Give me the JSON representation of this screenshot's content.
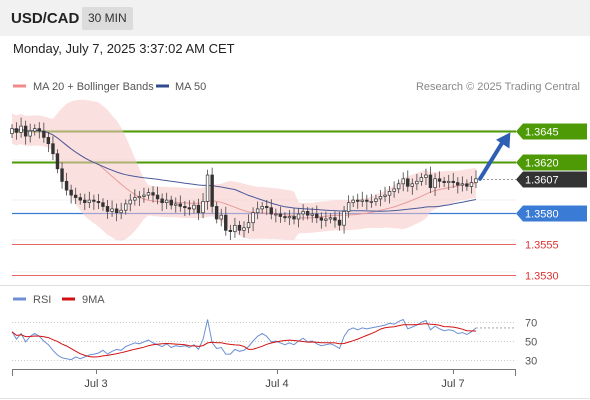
{
  "header": {
    "symbol": "USD/CAD",
    "timeframe": "30 MIN"
  },
  "date_text": "Monday, July 7, 2025 3:37:02 AM CET",
  "legend": {
    "ma20": "MA 20 + Bollinger Bands",
    "ma50": "MA 50",
    "rsi": "RSI",
    "rsi_ma": "9MA",
    "credit": "Research © 2025 Trading Central"
  },
  "colors": {
    "green": "#4e9a06",
    "blue": "#3a7bd5",
    "red": "#dd3333",
    "dark": "#333333",
    "band": "#f7c6c6",
    "ma20": "#e89b9b",
    "ma50": "#4a5a9a",
    "rsi": "#6c8fd6",
    "rsi_ma": "#d11111"
  },
  "chart_data": [
    {
      "type": "candlestick",
      "x_ticks": [
        "Jul 3",
        "Jul 4",
        "Jul 7"
      ],
      "ylim": [
        1.3524,
        1.3665
      ],
      "levels": [
        {
          "value": 1.3645,
          "label": "1.3645",
          "kind": "resistance"
        },
        {
          "value": 1.362,
          "label": "1.3620",
          "kind": "resistance"
        },
        {
          "value": 1.3607,
          "label": "1.3607",
          "kind": "last"
        },
        {
          "value": 1.358,
          "label": "1.3580",
          "kind": "pivot"
        },
        {
          "value": 1.3555,
          "label": "1.3555",
          "kind": "support"
        },
        {
          "value": 1.353,
          "label": "1.3530",
          "kind": "support"
        }
      ],
      "projection": {
        "from": 1.3607,
        "to": 1.3645
      },
      "close": [
        1.3647,
        1.3644,
        1.3649,
        1.3641,
        1.3645,
        1.3647,
        1.3645,
        1.364,
        1.3635,
        1.3627,
        1.3615,
        1.3605,
        1.3598,
        1.3594,
        1.3592,
        1.359,
        1.3588,
        1.359,
        1.3589,
        1.3588,
        1.3585,
        1.3581,
        1.3583,
        1.358,
        1.3582,
        1.3587,
        1.359,
        1.3592,
        1.3593,
        1.3594,
        1.3596,
        1.3594,
        1.3591,
        1.3588,
        1.359,
        1.3586,
        1.3587,
        1.3585,
        1.3584,
        1.3583,
        1.3586,
        1.358,
        1.3589,
        1.361,
        1.3585,
        1.3575,
        1.3578,
        1.3566,
        1.3565,
        1.357,
        1.3566,
        1.3568,
        1.3572,
        1.358,
        1.3583,
        1.3585,
        1.3584,
        1.3579,
        1.3579,
        1.3577,
        1.3576,
        1.3577,
        1.3575,
        1.3579,
        1.3581,
        1.3578,
        1.3579,
        1.3576,
        1.3574,
        1.3575,
        1.3576,
        1.3574,
        1.357,
        1.3581,
        1.3588,
        1.359,
        1.3589,
        1.359,
        1.3589,
        1.3589,
        1.3591,
        1.3593,
        1.3594,
        1.3597,
        1.3599,
        1.3603,
        1.3607,
        1.3601,
        1.3603,
        1.3605,
        1.3608,
        1.361,
        1.36,
        1.3607,
        1.3605,
        1.3604,
        1.3605,
        1.3604,
        1.3602,
        1.3603,
        1.3601,
        1.3604,
        1.3607
      ]
    },
    {
      "type": "line",
      "name": "RSI",
      "x_ticks": [
        "Jul 3",
        "Jul 4",
        "Jul 7"
      ],
      "ylim": [
        20,
        80
      ],
      "y_ticks": [
        70,
        50,
        30
      ],
      "values": [
        60,
        52,
        58,
        49,
        55,
        58,
        55,
        50,
        46,
        40,
        35,
        32,
        31,
        30,
        33,
        31,
        33,
        35,
        36,
        37,
        40,
        36,
        39,
        41,
        40,
        44,
        46,
        48,
        47,
        49,
        51,
        48,
        46,
        44,
        47,
        43,
        45,
        44,
        45,
        43,
        46,
        41,
        52,
        73,
        48,
        42,
        43,
        36,
        36,
        41,
        39,
        40,
        44,
        50,
        55,
        58,
        55,
        49,
        50,
        48,
        46,
        48,
        46,
        50,
        53,
        49,
        50,
        47,
        45,
        46,
        47,
        45,
        42,
        55,
        62,
        64,
        62,
        64,
        63,
        64,
        65,
        66,
        67,
        69,
        68,
        71,
        73,
        63,
        65,
        67,
        70,
        72,
        62,
        66,
        63,
        61,
        62,
        61,
        58,
        59,
        57,
        60,
        64
      ],
      "ma_name": "9MA"
    }
  ]
}
